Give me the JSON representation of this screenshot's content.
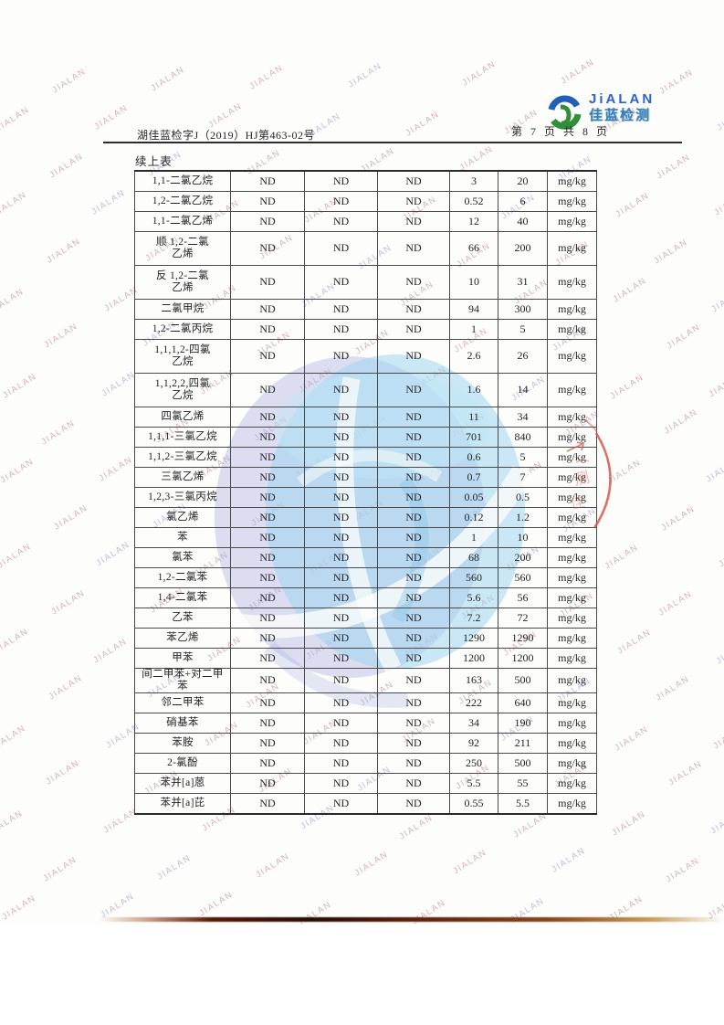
{
  "header": {
    "doc_number": "湖佳蓝检字J（2019）HJ第463-02号",
    "page_label": "第 7 页 共 8 页"
  },
  "logo": {
    "en": "JiALAN",
    "cn": "佳蓝检测"
  },
  "table": {
    "title": "续上表",
    "unit": "mg/kg",
    "result_nd": "ND",
    "rows": [
      [
        "1,1-二氯乙烷",
        "ND",
        "ND",
        "ND",
        "3",
        "20"
      ],
      [
        "1,2-二氯乙烷",
        "ND",
        "ND",
        "ND",
        "0.52",
        "6"
      ],
      [
        "1,1-二氯乙烯",
        "ND",
        "ND",
        "ND",
        "12",
        "40"
      ],
      [
        "顺 1,2-二氯\n乙烯",
        "ND",
        "ND",
        "ND",
        "66",
        "200"
      ],
      [
        "反 1,2-二氯\n乙烯",
        "ND",
        "ND",
        "ND",
        "10",
        "31"
      ],
      [
        "二氯甲烷",
        "ND",
        "ND",
        "ND",
        "94",
        "300"
      ],
      [
        "1,2-二氯丙烷",
        "ND",
        "ND",
        "ND",
        "1",
        "5"
      ],
      [
        "1,1,1,2-四氯\n乙烷",
        "ND",
        "ND",
        "ND",
        "2.6",
        "26"
      ],
      [
        "1,1,2,2,四氯\n乙烷",
        "ND",
        "ND",
        "ND",
        "1.6",
        "14"
      ],
      [
        "四氯乙烯",
        "ND",
        "ND",
        "ND",
        "11",
        "34"
      ],
      [
        "1,1,1-三氯乙烷",
        "ND",
        "ND",
        "ND",
        "701",
        "840"
      ],
      [
        "1,1,2-三氯乙烷",
        "ND",
        "ND",
        "ND",
        "0.6",
        "5"
      ],
      [
        "三氯乙烯",
        "ND",
        "ND",
        "ND",
        "0.7",
        "7"
      ],
      [
        "1,2,3-三氯丙烷",
        "ND",
        "ND",
        "ND",
        "0.05",
        "0.5"
      ],
      [
        "氯乙烯",
        "ND",
        "ND",
        "ND",
        "0.12",
        "1.2"
      ],
      [
        "苯",
        "ND",
        "ND",
        "ND",
        "1",
        "10"
      ],
      [
        "氯苯",
        "ND",
        "ND",
        "ND",
        "68",
        "200"
      ],
      [
        "1,2-二氯苯",
        "ND",
        "ND",
        "ND",
        "560",
        "560"
      ],
      [
        "1,4-二氯苯",
        "ND",
        "ND",
        "ND",
        "5.6",
        "56"
      ],
      [
        "乙苯",
        "ND",
        "ND",
        "ND",
        "7.2",
        "72"
      ],
      [
        "苯乙烯",
        "ND",
        "ND",
        "ND",
        "1290",
        "1290"
      ],
      [
        "甲苯",
        "ND",
        "ND",
        "ND",
        "1200",
        "1200"
      ],
      [
        "间二甲苯+对二甲苯",
        "ND",
        "ND",
        "ND",
        "163",
        "500"
      ],
      [
        "邻二甲苯",
        "ND",
        "ND",
        "ND",
        "222",
        "640"
      ],
      [
        "硝基苯",
        "ND",
        "ND",
        "ND",
        "34",
        "190"
      ],
      [
        "苯胺",
        "ND",
        "ND",
        "ND",
        "92",
        "211"
      ],
      [
        "2-氯酚",
        "ND",
        "ND",
        "ND",
        "250",
        "500"
      ],
      [
        "苯并[a]蒽",
        "ND",
        "ND",
        "ND",
        "5.5",
        "55"
      ],
      [
        "苯并[a]芘",
        "ND",
        "ND",
        "ND",
        "0.55",
        "5.5"
      ]
    ]
  },
  "watermark": {
    "text": "JIALAN",
    "color": "rgba(176,118,138,0.55)",
    "alt_color": "rgba(140,126,184,0.5)"
  },
  "colors": {
    "stamp_red": "#cf4f43",
    "logo_blue": "#2b63c8",
    "logo_green": "#2f8f3a",
    "wm_lavender": "#b1b3e4",
    "wm_cyan": "#a6daf1"
  }
}
